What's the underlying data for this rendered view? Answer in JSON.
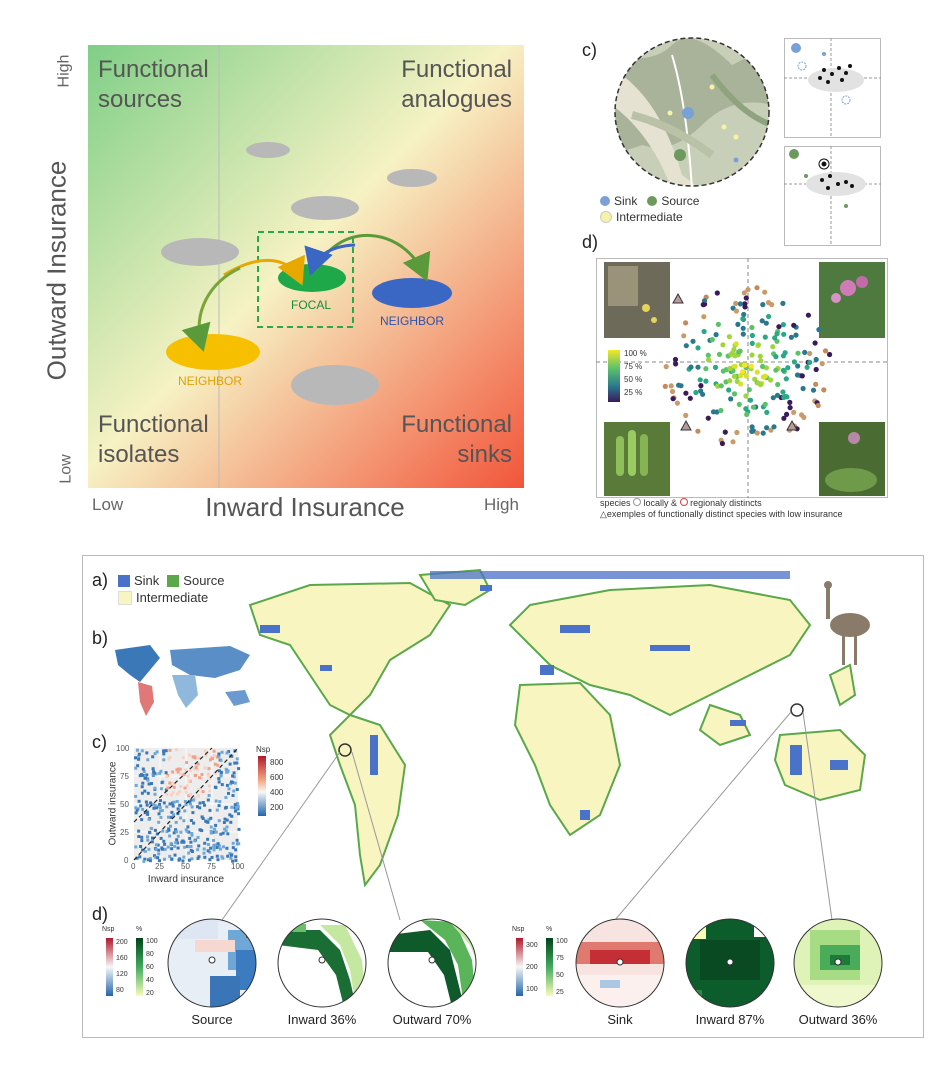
{
  "conceptual": {
    "y_title": "Outward Insurance",
    "x_title": "Inward Insurance",
    "y_high": "High",
    "y_low": "Low",
    "x_low": "Low",
    "x_high": "High",
    "q_top_left": [
      "Functional",
      "sources"
    ],
    "q_top_right": [
      "Functional",
      "analogues"
    ],
    "q_bottom_left": [
      "Functional",
      "isolates"
    ],
    "q_bottom_right": [
      "Functional",
      "sinks"
    ],
    "focal": "FOCAL",
    "neighbor_right": "NEIGHBOR",
    "neighbor_left": "NEIGHBOR"
  },
  "alpine": {
    "panel_c": "c)",
    "panel_d": "d)",
    "legend_sink": "Sink",
    "legend_source": "Source",
    "legend_intermediate": "Intermediate",
    "colorbar": [
      "100 %",
      "75 %",
      "50 %",
      "25 %"
    ],
    "footnote_1a": "species",
    "footnote_1b": "locally &",
    "footnote_1c": "regionaly distincts",
    "footnote_2": "exemples of functionally distinct species with low insurance"
  },
  "global": {
    "panel_a": "a)",
    "panel_b": "b)",
    "panel_c": "c)",
    "panel_d": "d)",
    "legend_sink": "Sink",
    "legend_source": "Source",
    "legend_intermediate": "Intermediate",
    "scatter_ylabel": "Outward insurance",
    "scatter_xlabel": "Inward insurance",
    "scatter_ticks": [
      "0",
      "25",
      "50",
      "75",
      "100"
    ],
    "nsp_title": "Nsp",
    "nsp_ticks": [
      "800",
      "600",
      "400",
      "200"
    ],
    "left_nsp_title": "Nsp",
    "left_nsp_ticks": [
      "200",
      "160",
      "120",
      "80"
    ],
    "left_pct_title": "%",
    "left_pct_ticks": [
      "100",
      "80",
      "60",
      "40",
      "20"
    ],
    "right_nsp_title": "Nsp",
    "right_nsp_ticks": [
      "300",
      "200",
      "100"
    ],
    "right_pct_title": "%",
    "right_pct_ticks": [
      "100",
      "75",
      "50",
      "25"
    ],
    "circle_labels": [
      "Source",
      "Inward 36%",
      "Outward 70%",
      "Sink",
      "Inward 87%",
      "Outward 36%"
    ]
  },
  "colors": {
    "sink": "#4a72c8",
    "source": "#5aa84a",
    "intermediate": "#f8f5c0",
    "focal": "#1fa84a",
    "neighbor_blue": "#3a66c4",
    "neighbor_yellow": "#f6c000"
  }
}
